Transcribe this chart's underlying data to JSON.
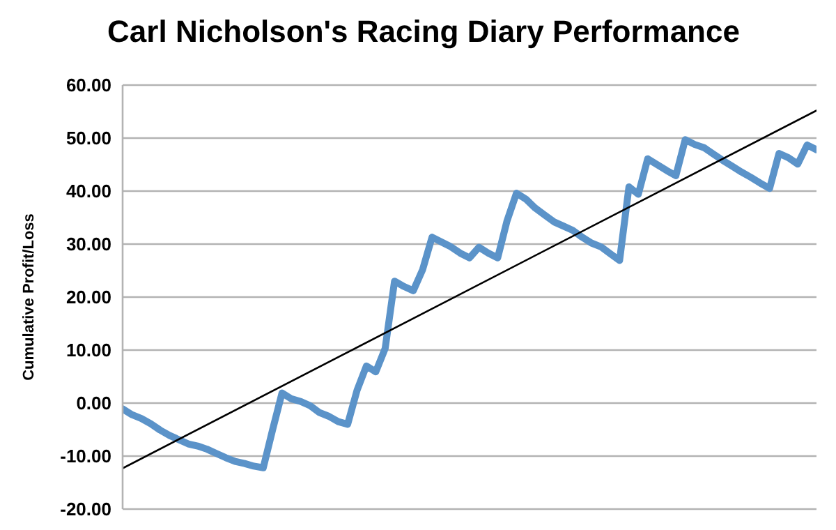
{
  "chart_data": {
    "type": "line",
    "title": "Carl Nicholson's Racing Diary Performance",
    "ylabel": "Cumulative Profit/Loss",
    "categories": [
      null,
      null,
      null,
      null,
      null,
      null,
      null,
      null,
      null,
      null,
      null,
      null,
      null,
      null,
      null,
      null,
      null,
      null,
      null,
      null,
      null,
      null,
      null,
      null,
      null,
      null,
      null,
      null,
      null,
      null,
      null,
      null,
      null,
      null,
      null,
      null,
      null,
      null,
      null,
      null,
      null,
      null,
      null,
      null,
      null,
      null,
      null,
      null,
      null,
      null,
      null,
      null,
      null,
      null,
      null,
      null,
      null,
      null,
      null,
      null,
      null,
      null,
      null,
      null,
      null,
      null,
      null,
      null,
      null,
      null,
      null,
      null,
      null,
      null,
      null
    ],
    "series": [
      {
        "color": "#5b93c9",
        "values": [
          -1.1,
          -2.2,
          -2.9,
          -3.9,
          -5.1,
          -6.1,
          -6.9,
          -7.7,
          -8.1,
          -8.7,
          -9.5,
          -10.3,
          -11.0,
          -11.4,
          -11.9,
          -12.2,
          -5.0,
          1.9,
          0.8,
          0.3,
          -0.5,
          -1.8,
          -2.5,
          -3.5,
          -4.0,
          2.4,
          7.0,
          5.9,
          10.3,
          23.0,
          22.0,
          21.2,
          25.2,
          31.3,
          30.4,
          29.5,
          28.3,
          27.4,
          29.4,
          28.3,
          27.4,
          34.4,
          39.6,
          38.5,
          36.8,
          35.5,
          34.2,
          33.4,
          32.6,
          31.3,
          30.2,
          29.5,
          28.2,
          26.9,
          40.8,
          39.4,
          46.1,
          45.0,
          43.9,
          42.9,
          49.7,
          48.8,
          48.2,
          47.0,
          45.8,
          44.7,
          43.6,
          42.6,
          41.5,
          40.5,
          47.1,
          46.3,
          45.1,
          48.7,
          47.8
        ]
      },
      {
        "type": "line",
        "color": "#000000",
        "values": [
          -12.3,
          null,
          null,
          null,
          null,
          null,
          null,
          null,
          null,
          null,
          null,
          null,
          null,
          null,
          null,
          null,
          null,
          null,
          null,
          null,
          null,
          null,
          null,
          null,
          null,
          null,
          null,
          null,
          null,
          null,
          null,
          null,
          null,
          null,
          null,
          null,
          null,
          null,
          null,
          null,
          null,
          null,
          null,
          null,
          null,
          null,
          null,
          null,
          null,
          null,
          null,
          null,
          null,
          null,
          null,
          null,
          null,
          null,
          null,
          null,
          null,
          null,
          null,
          null,
          null,
          null,
          null,
          null,
          null,
          null,
          null,
          null,
          null,
          null,
          55.2
        ]
      }
    ],
    "ylim": [
      -20,
      60
    ],
    "yticks": [
      {
        "value": -20,
        "label": "-20.00"
      },
      {
        "value": -10,
        "label": "-10.00"
      },
      {
        "value": 0,
        "label": "0.00"
      },
      {
        "value": 10,
        "label": "10.00"
      },
      {
        "value": 20,
        "label": "20.00"
      },
      {
        "value": 30,
        "label": "30.00"
      },
      {
        "value": 40,
        "label": "40.00"
      },
      {
        "value": 50,
        "label": "50.00"
      },
      {
        "value": 60,
        "label": "60.00"
      }
    ],
    "grid": "y",
    "marker": "none",
    "line_style": "solid"
  }
}
